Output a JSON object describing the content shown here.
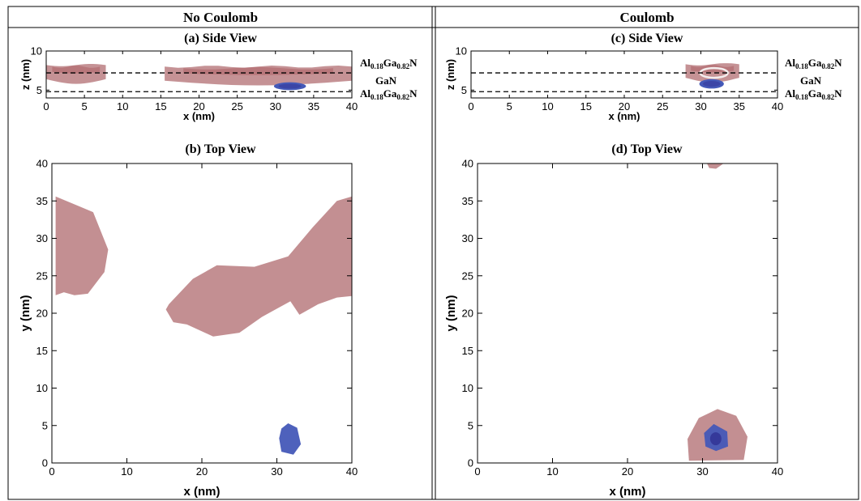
{
  "columns": [
    {
      "title": "No Coulomb",
      "side_title": "(a) Side View",
      "top_title": "(b) Top View"
    },
    {
      "title": "Coulomb",
      "side_title": "(c) Side View",
      "top_title": "(d) Top View"
    }
  ],
  "layers": {
    "top": {
      "base": "Al",
      "sub1": "0.18",
      "mid": "Ga",
      "sub2": "0.82",
      "end": "N"
    },
    "middle": "GaN",
    "bottom": {
      "base": "Al",
      "sub1": "0.18",
      "mid": "Ga",
      "sub2": "0.82",
      "end": "N"
    }
  },
  "colors": {
    "hole_density": "#c0898c",
    "hole_dark": "#a9565b",
    "electron_density": "#4459b8",
    "electron_dark": "#35399a"
  },
  "chart_data": [
    {
      "type": "isosurface-side-view",
      "title": "(a) Side View",
      "xlabel": "x (nm)",
      "ylabel": "z (nm)",
      "xlim": [
        0,
        40
      ],
      "ylim": [
        4,
        10
      ],
      "xticks": [
        0,
        5,
        10,
        15,
        20,
        25,
        30,
        35,
        40
      ],
      "yticks": [
        5,
        10
      ],
      "interfaces_z": [
        7.2,
        4.8
      ],
      "regions": [
        {
          "series": "hole",
          "x_range": [
            0,
            7.8
          ],
          "z_range": [
            5.8,
            8.2
          ]
        },
        {
          "series": "hole",
          "x_range": [
            15.5,
            40
          ],
          "z_range": [
            5.6,
            8.0
          ]
        },
        {
          "series": "electron",
          "x_range": [
            29.8,
            34
          ],
          "z_range": [
            5.0,
            6.0
          ]
        }
      ]
    },
    {
      "type": "isosurface-side-view",
      "title": "(c) Side View",
      "xlabel": "x (nm)",
      "ylabel": "z (nm)",
      "xlim": [
        0,
        40
      ],
      "ylim": [
        4,
        10
      ],
      "xticks": [
        0,
        5,
        10,
        15,
        20,
        25,
        30,
        35,
        40
      ],
      "yticks": [
        5,
        10
      ],
      "interfaces_z": [
        7.2,
        4.8
      ],
      "regions": [
        {
          "series": "hole",
          "x_range": [
            28,
            35
          ],
          "z_range": [
            6.0,
            8.3
          ]
        },
        {
          "series": "electron",
          "x_range": [
            29.8,
            33
          ],
          "z_range": [
            5.2,
            6.4
          ]
        }
      ]
    },
    {
      "type": "isosurface-top-view",
      "title": "(b) Top View",
      "xlabel": "x (nm)",
      "ylabel": "y (nm)",
      "xlim": [
        0,
        40
      ],
      "ylim": [
        0,
        40
      ],
      "xticks": [
        0,
        10,
        20,
        30,
        40
      ],
      "yticks": [
        0,
        5,
        10,
        15,
        20,
        25,
        30,
        35,
        40
      ],
      "regions": [
        {
          "series": "hole",
          "outline": [
            [
              0.5,
              35.6
            ],
            [
              5.5,
              33.5
            ],
            [
              7.5,
              28.5
            ],
            [
              7,
              25.5
            ],
            [
              4.8,
              22.6
            ],
            [
              3,
              22.4
            ],
            [
              1.6,
              22.8
            ],
            [
              0.5,
              22.4
            ]
          ]
        },
        {
          "series": "hole",
          "outline": [
            [
              15.6,
              21.2
            ],
            [
              18.8,
              24.6
            ],
            [
              22,
              26.4
            ],
            [
              27,
              26.2
            ],
            [
              31.5,
              27.6
            ],
            [
              34.8,
              31.5
            ],
            [
              38,
              35
            ],
            [
              40,
              35.6
            ],
            [
              40,
              22.3
            ],
            [
              38,
              22.1
            ],
            [
              35.5,
              21.2
            ],
            [
              33,
              19.8
            ],
            [
              31.8,
              21.6
            ],
            [
              28,
              19.5
            ],
            [
              25,
              17.4
            ],
            [
              21.5,
              16.9
            ],
            [
              18,
              18.5
            ],
            [
              16.2,
              18.8
            ],
            [
              15.2,
              20.5
            ]
          ]
        },
        {
          "series": "electron",
          "outline": [
            [
              30.6,
              4.6
            ],
            [
              31.5,
              5.3
            ],
            [
              32.7,
              4.7
            ],
            [
              33.2,
              2.5
            ],
            [
              32.2,
              1.1
            ],
            [
              30.6,
              1.5
            ],
            [
              30.3,
              3.3
            ]
          ]
        }
      ]
    },
    {
      "type": "isosurface-top-view",
      "title": "(d) Top View",
      "xlabel": "x (nm)",
      "ylabel": "y (nm)",
      "xlim": [
        0,
        40
      ],
      "ylim": [
        0,
        40
      ],
      "xticks": [
        0,
        10,
        20,
        30,
        40
      ],
      "yticks": [
        0,
        5,
        10,
        15,
        20,
        25,
        30,
        35,
        40
      ],
      "regions": [
        {
          "series": "hole",
          "outline": [
            [
              28,
              3.2
            ],
            [
              29.5,
              6
            ],
            [
              32,
              7.2
            ],
            [
              34.5,
              6.3
            ],
            [
              36,
              3.5
            ],
            [
              35.5,
              0.4
            ],
            [
              28.2,
              0.3
            ]
          ]
        },
        {
          "series": "hole",
          "outline": [
            [
              30.6,
              40
            ],
            [
              32.8,
              40
            ],
            [
              31.8,
              39.3
            ],
            [
              30.9,
              39.4
            ]
          ]
        },
        {
          "series": "electron",
          "outline": [
            [
              30.2,
              4
            ],
            [
              31.5,
              5.2
            ],
            [
              33.3,
              4.2
            ],
            [
              33.4,
              2.2
            ],
            [
              31.8,
              1.6
            ],
            [
              30.4,
              2.2
            ]
          ]
        }
      ]
    }
  ]
}
